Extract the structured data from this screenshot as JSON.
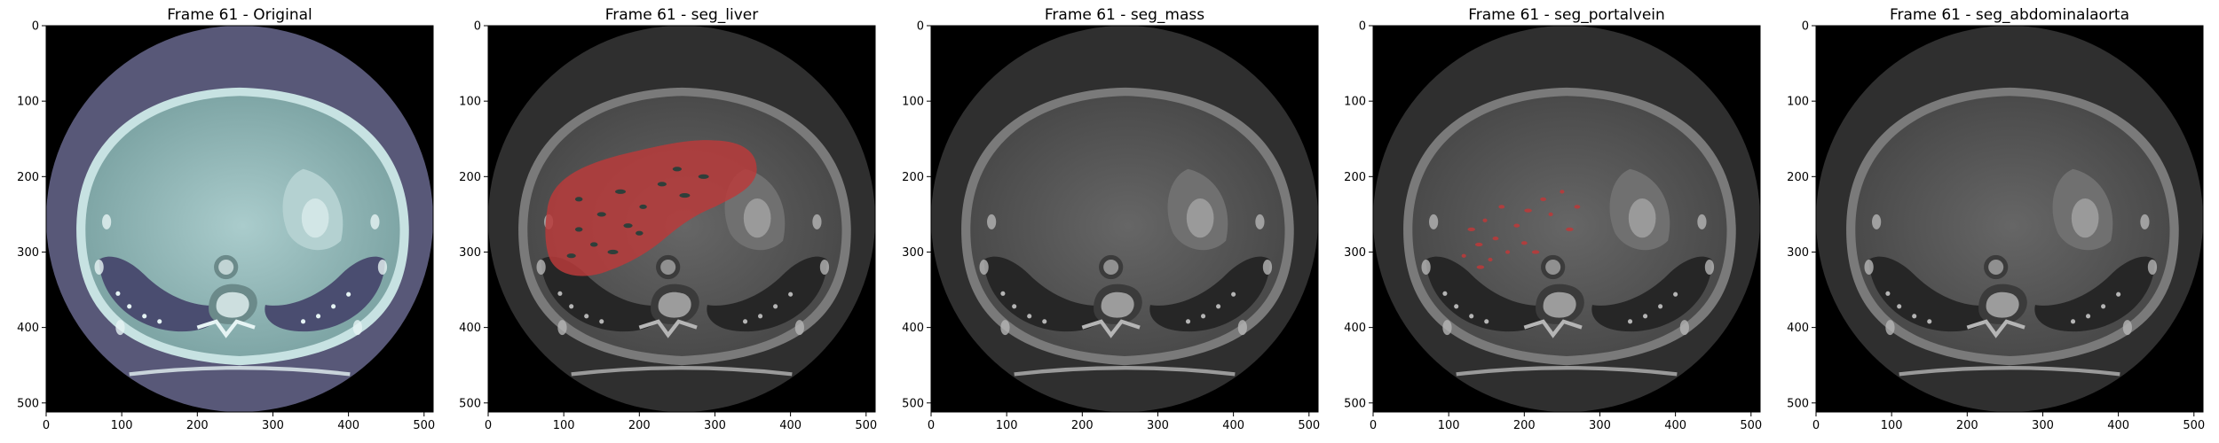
{
  "frame_label": "Frame 61",
  "panels": [
    {
      "title": "Frame 61 - Original",
      "style": "bone",
      "overlay": "none"
    },
    {
      "title": "Frame 61 - seg_liver",
      "style": "gray",
      "overlay": "liver"
    },
    {
      "title": "Frame 61 - seg_mass",
      "style": "gray",
      "overlay": "none"
    },
    {
      "title": "Frame 61 - seg_portalvein",
      "style": "gray",
      "overlay": "portalvein"
    },
    {
      "title": "Frame 61 - seg_abdominalaorta",
      "style": "gray",
      "overlay": "none"
    }
  ],
  "axes": {
    "xticks": [
      "0",
      "100",
      "200",
      "300",
      "400",
      "500"
    ],
    "yticks": [
      "0",
      "100",
      "200",
      "300",
      "400",
      "500"
    ],
    "xlim": [
      0,
      512
    ],
    "ylim": [
      512,
      0
    ]
  },
  "colors": {
    "overlay_red": "#b83b3b",
    "bone_body": "#8fb3b3",
    "bone_outside": "#585878",
    "gray_outside": "#2f2f2f"
  }
}
